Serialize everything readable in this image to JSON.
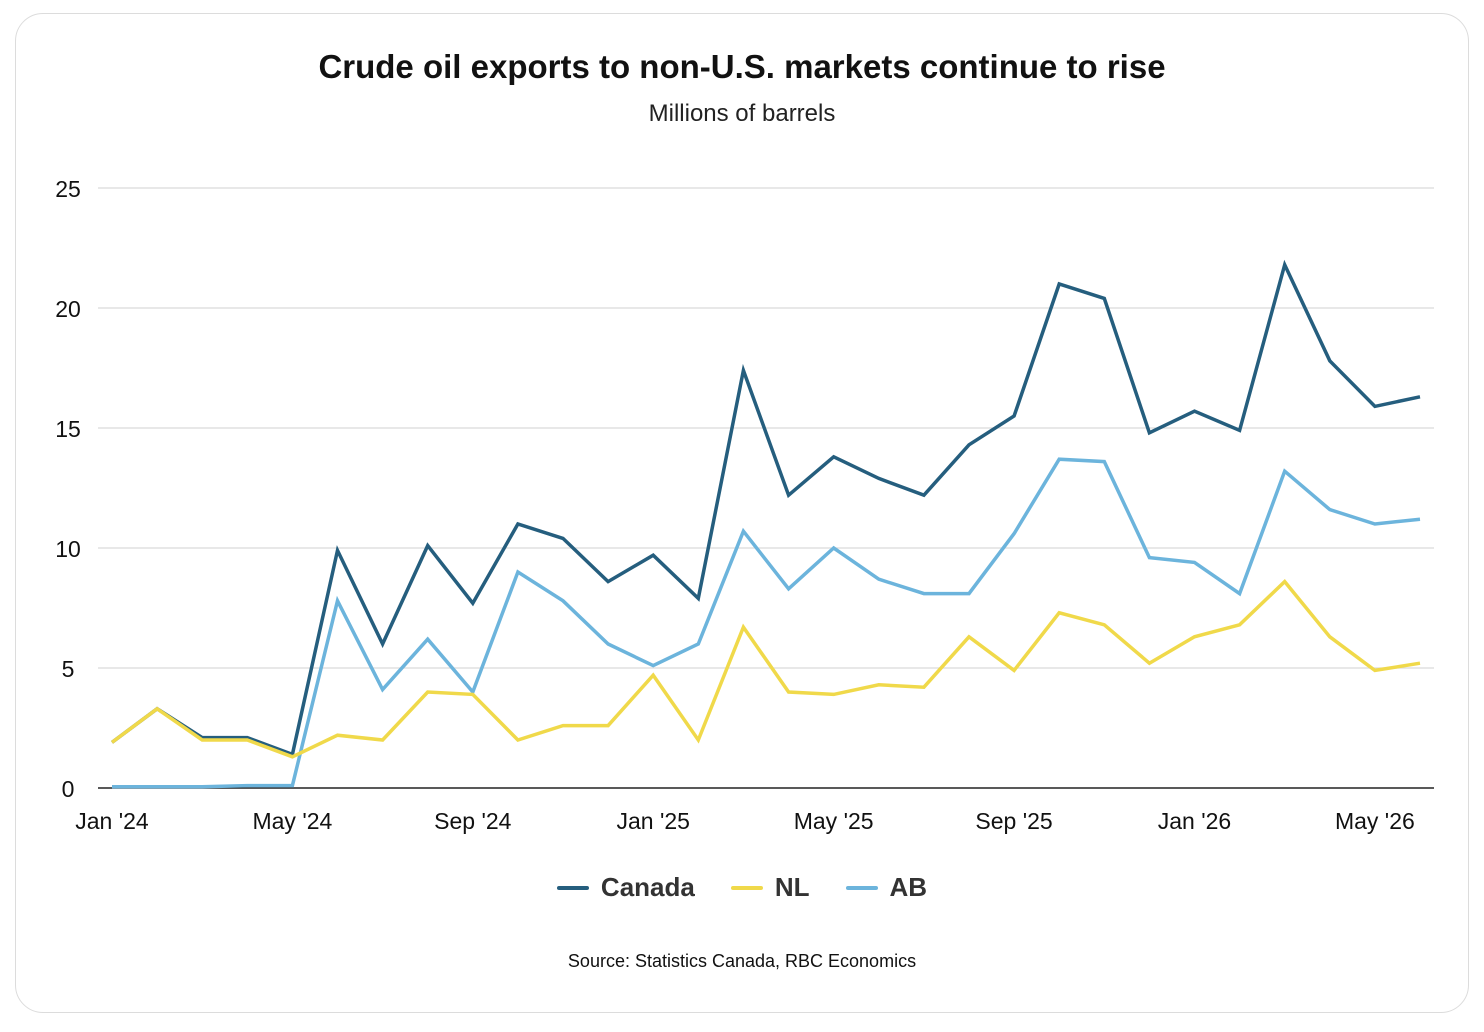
{
  "colors": {
    "canada": "#255e7e",
    "nl": "#f0d94a",
    "ab": "#6cb4dc",
    "grid": "#d9d9d9",
    "axis": "#222222"
  },
  "chart_data": {
    "type": "line",
    "title": "Crude oil exports to non-U.S. markets continue to rise",
    "subtitle": "Millions of barrels",
    "xlabel": "",
    "ylabel": "",
    "ylim": [
      0,
      25
    ],
    "yticks": [
      0,
      5,
      10,
      15,
      20,
      25
    ],
    "x": [
      "Jan '24",
      "Feb '24",
      "Mar '24",
      "Apr '24",
      "May '24",
      "Jun '24",
      "Jul '24",
      "Aug '24",
      "Sep '24",
      "Oct '24",
      "Nov '24",
      "Dec '24",
      "Jan '25",
      "Feb '25",
      "Mar '25",
      "Apr '25",
      "May '25",
      "Jun '25",
      "Jul '25",
      "Aug '25",
      "Sep '25",
      "Oct '25",
      "Nov '25",
      "Dec '25",
      "Jan '26",
      "Feb '26",
      "Mar '26",
      "Apr '26",
      "May '26",
      "Jun '26"
    ],
    "xtick_labels": [
      "Jan '24",
      "May '24",
      "Sep '24",
      "Jan '25",
      "May '25",
      "Sep '25",
      "Jan '26",
      "May '26"
    ],
    "grid": true,
    "legend_position": "bottom-center",
    "series": [
      {
        "name": "Canada",
        "color_key": "canada",
        "values": [
          1.9,
          3.3,
          2.1,
          2.1,
          1.4,
          9.9,
          6.0,
          10.1,
          7.7,
          11.0,
          10.4,
          8.6,
          9.7,
          7.9,
          17.4,
          12.2,
          13.8,
          12.9,
          12.2,
          14.3,
          15.5,
          21.0,
          20.4,
          14.8,
          15.7,
          14.9,
          21.8,
          17.8,
          15.9,
          16.3
        ]
      },
      {
        "name": "NL",
        "color_key": "nl",
        "values": [
          1.9,
          3.3,
          2.0,
          2.0,
          1.3,
          2.2,
          2.0,
          4.0,
          3.9,
          2.0,
          2.6,
          2.6,
          4.7,
          2.0,
          6.7,
          4.0,
          3.9,
          4.3,
          4.2,
          6.3,
          4.9,
          7.3,
          6.8,
          5.2,
          6.3,
          6.8,
          8.6,
          6.3,
          4.9,
          5.2
        ]
      },
      {
        "name": "AB",
        "color_key": "ab",
        "values": [
          0.05,
          0.05,
          0.05,
          0.1,
          0.1,
          7.8,
          4.1,
          6.2,
          4.0,
          9.0,
          7.8,
          6.0,
          5.1,
          6.0,
          10.7,
          8.3,
          10.0,
          8.7,
          8.1,
          8.1,
          10.6,
          13.7,
          13.6,
          9.6,
          9.4,
          8.1,
          13.2,
          11.6,
          11.0,
          11.2
        ]
      }
    ]
  },
  "legend": {
    "canada": "Canada",
    "nl": "NL",
    "ab": "AB"
  },
  "source": "Source: Statistics Canada, RBC Economics"
}
